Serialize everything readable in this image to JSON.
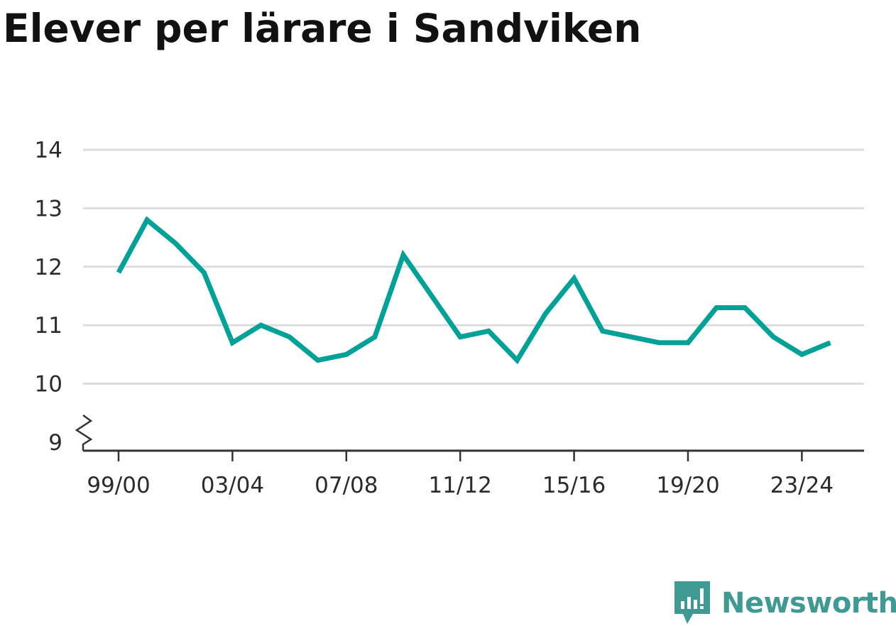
{
  "title": "Elever per lärare i Sandviken",
  "brand": {
    "name": "Newsworthy",
    "color": "#3f9a93"
  },
  "chart_data": {
    "type": "line",
    "title": "Elever per lärare i Sandviken",
    "xlabel": "",
    "ylabel": "",
    "x": [
      "99/00",
      "00/01",
      "01/02",
      "02/03",
      "03/04",
      "04/05",
      "05/06",
      "06/07",
      "07/08",
      "08/09",
      "09/10",
      "10/11",
      "11/12",
      "12/13",
      "13/14",
      "14/15",
      "15/16",
      "16/17",
      "17/18",
      "18/19",
      "19/20",
      "20/21",
      "21/22",
      "22/23",
      "23/24",
      "24/25"
    ],
    "x_tick_labels": [
      "99/00",
      "03/04",
      "07/08",
      "11/12",
      "15/16",
      "19/20",
      "23/24"
    ],
    "y_tick_labels": [
      9,
      10,
      11,
      12,
      13,
      14
    ],
    "ylim": [
      9,
      14
    ],
    "y_axis_break": true,
    "grid": true,
    "series": [
      {
        "values": [
          11.9,
          12.8,
          12.4,
          11.9,
          10.7,
          11.0,
          10.8,
          10.4,
          10.5,
          10.8,
          12.2,
          11.5,
          10.8,
          10.9,
          10.4,
          11.2,
          11.8,
          10.9,
          10.8,
          10.7,
          10.7,
          11.3,
          11.3,
          10.8,
          10.5,
          10.7
        ],
        "color": "#00a196"
      }
    ]
  }
}
